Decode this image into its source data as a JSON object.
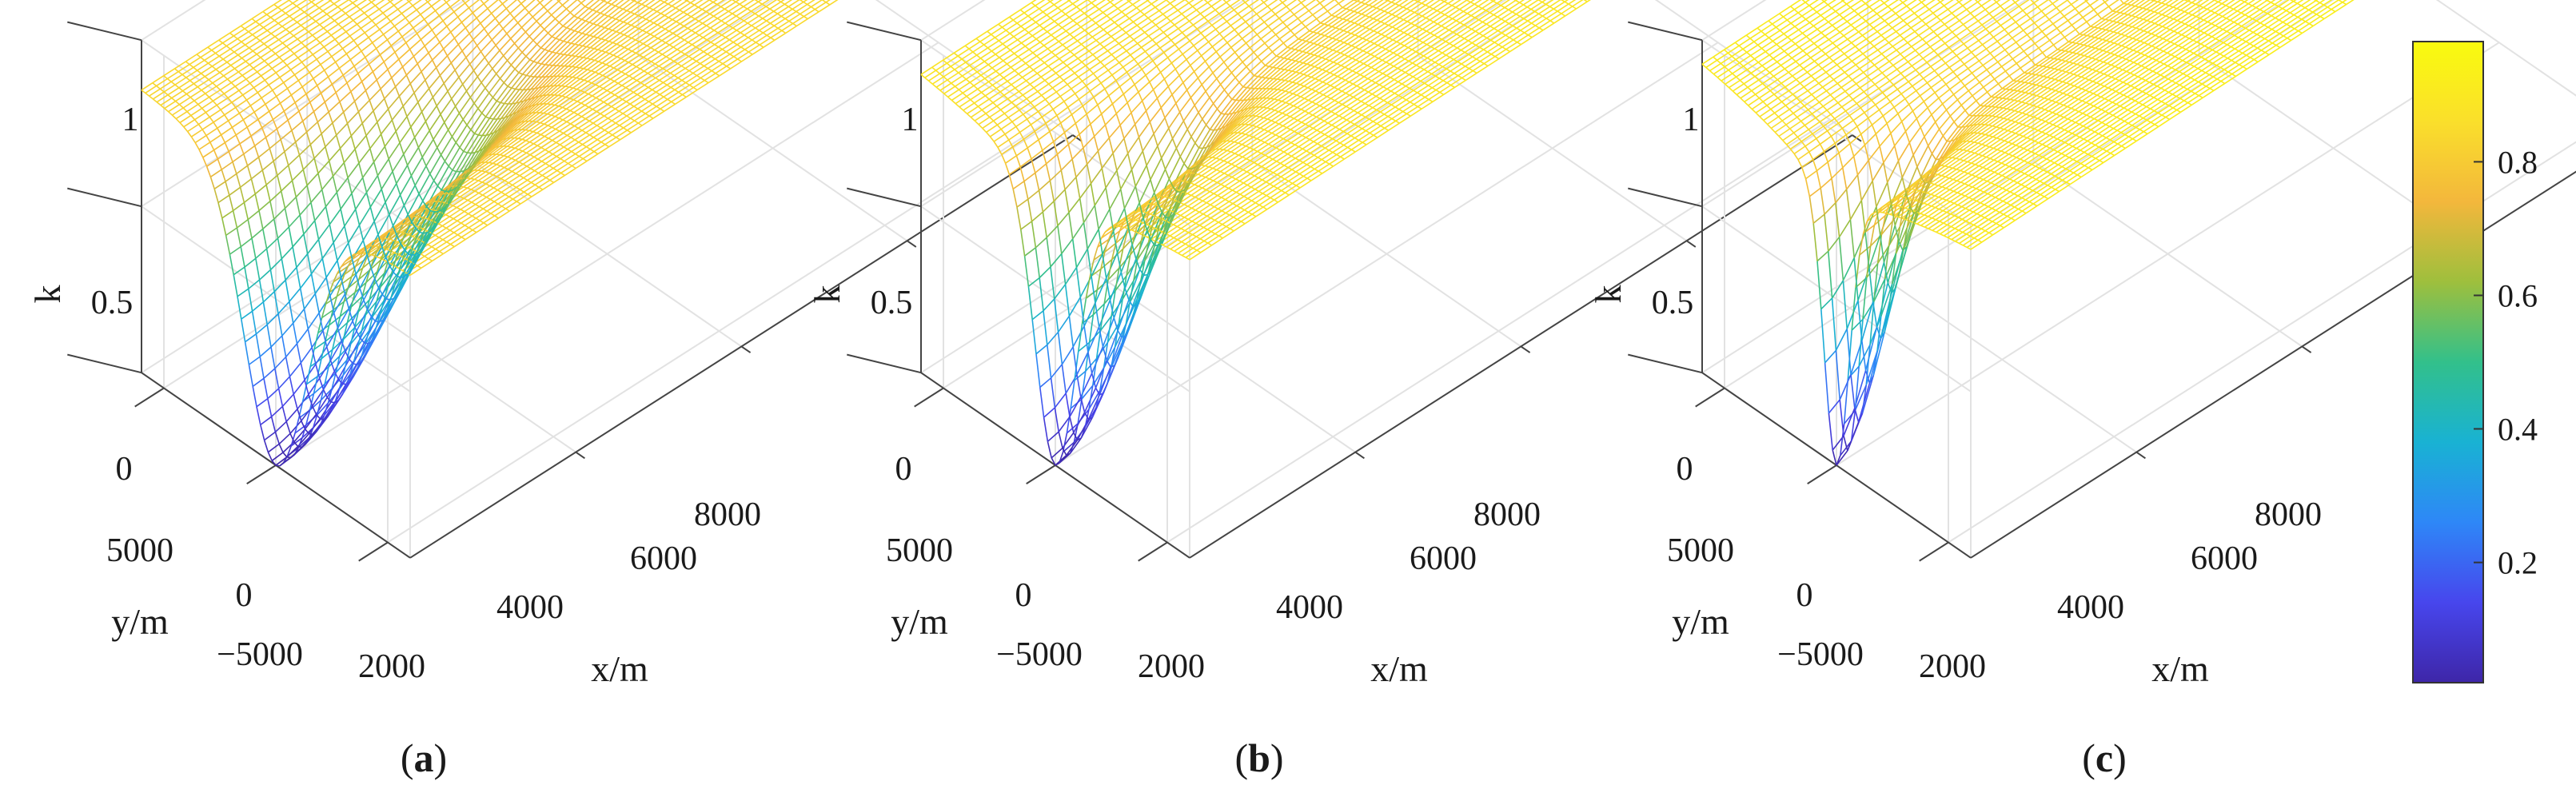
{
  "chart_data": [
    {
      "type": "surface3d",
      "panel_label": "a",
      "caption_open": "(",
      "caption_close": ")",
      "zlabel": "k",
      "xlabel": "x/m",
      "ylabel": "y/m",
      "z_ticks": [
        "0",
        "0.5",
        "1"
      ],
      "y_ticks": [
        "5000",
        "0",
        "−5000"
      ],
      "x_ticks": [
        "2000",
        "4000",
        "6000",
        "8000"
      ],
      "zlim": [
        0,
        1
      ],
      "x_range": [
        0,
        8000
      ],
      "y_range": [
        -6000,
        6000
      ],
      "well_x": 0,
      "well_y": 0,
      "min_k": 0.0,
      "far_field_k": 0.87,
      "well_width_m": 1400,
      "description_series": "k rises from 0 at the well (x=0, y=0) toward ~0.87 far field"
    },
    {
      "type": "surface3d",
      "panel_label": "b",
      "caption_open": "(",
      "caption_close": ")",
      "zlabel": "k",
      "xlabel": "x/m",
      "ylabel": "y/m",
      "z_ticks": [
        "0",
        "0.5",
        "1"
      ],
      "y_ticks": [
        "5000",
        "0",
        "−5000"
      ],
      "x_ticks": [
        "2000",
        "4000",
        "6000",
        "8000"
      ],
      "zlim": [
        0,
        1
      ],
      "x_range": [
        0,
        8000
      ],
      "y_range": [
        -6000,
        6000
      ],
      "well_x": 0,
      "well_y": 0,
      "min_k": 0.0,
      "far_field_k": 0.93,
      "well_width_m": 900,
      "description_series": "k rises from 0 at the well toward ~0.93 far field"
    },
    {
      "type": "surface3d",
      "panel_label": "c",
      "caption_open": "(",
      "caption_close": ")",
      "zlabel": "k",
      "xlabel": "x/m",
      "ylabel": "y/m",
      "z_ticks": [
        "0",
        "0.5",
        "1"
      ],
      "y_ticks": [
        "5000",
        "0",
        "−5000"
      ],
      "x_ticks": [
        "2000",
        "4000",
        "6000",
        "8000"
      ],
      "zlim": [
        0,
        1
      ],
      "x_range": [
        0,
        8000
      ],
      "y_range": [
        -6000,
        6000
      ],
      "well_x": 0,
      "well_y": 0,
      "min_k": 0.0,
      "far_field_k": 0.97,
      "well_width_m": 550,
      "description_series": "k rises from 0 at the well toward ~0.97 far field"
    }
  ],
  "colorbar": {
    "colormap": "parula",
    "range": [
      0.02,
      0.98
    ],
    "ticks": [
      {
        "value": 0.2,
        "label": "0.2"
      },
      {
        "value": 0.4,
        "label": "0.4"
      },
      {
        "value": 0.6,
        "label": "0.6"
      },
      {
        "value": 0.8,
        "label": "0.8"
      }
    ],
    "stops": [
      "#3e26a8",
      "#4746ed",
      "#2e87f7",
      "#19b2d3",
      "#32c08b",
      "#9ebf3d",
      "#f3b73c",
      "#fadf2b",
      "#f9fb0e"
    ]
  }
}
